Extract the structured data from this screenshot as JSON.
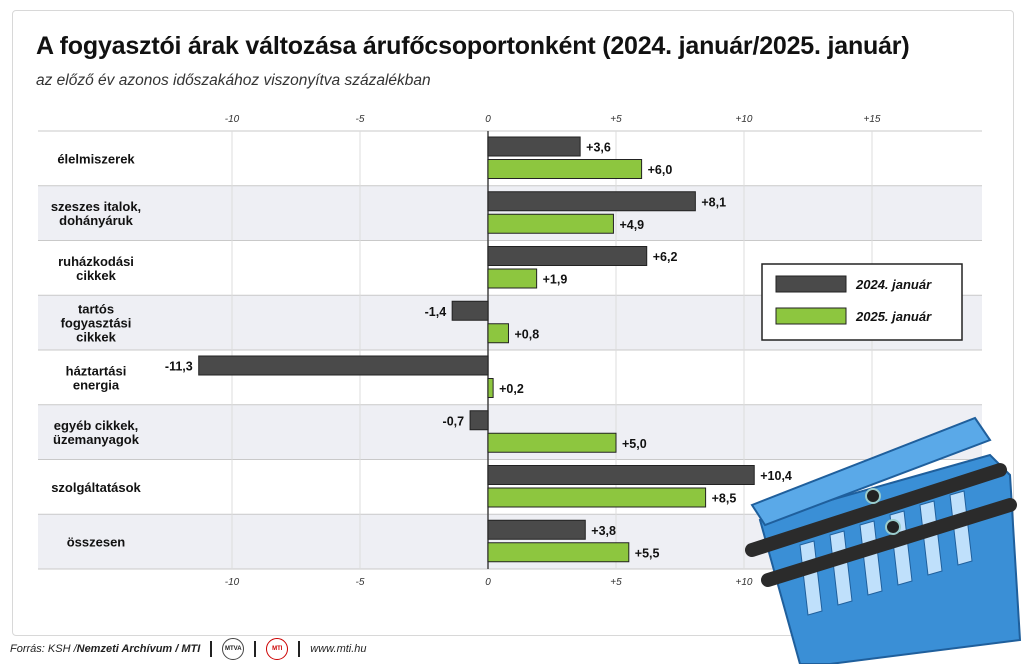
{
  "title": "A fogyasztói árak változása árufőcsoportonként (2024. január/2025. január)",
  "subtitle": "az előző év azonos időszakához viszonyítva százalékban",
  "chart_data": {
    "type": "bar",
    "orientation": "horizontal",
    "categories": [
      [
        "élelmiszerek"
      ],
      [
        "szeszes italok,",
        "dohányáruk"
      ],
      [
        "ruházkodási",
        "cikkek"
      ],
      [
        "tartós",
        "fogyasztási",
        "cikkek"
      ],
      [
        "háztartási",
        "energia"
      ],
      [
        "egyéb cikkek,",
        "üzemanyagok"
      ],
      [
        "szolgáltatások"
      ],
      [
        "összesen"
      ]
    ],
    "series": [
      {
        "name": "2024. január",
        "color": "#4a4a4a",
        "values": [
          3.6,
          8.1,
          6.2,
          -1.4,
          -11.3,
          -0.7,
          10.4,
          3.8
        ],
        "labels": [
          "+3,6",
          "+8,1",
          "+6,2",
          "-1,4",
          "-11,3",
          "-0,7",
          "+10,4",
          "+3,8"
        ]
      },
      {
        "name": "2025. január",
        "color": "#8dc63f",
        "values": [
          6.0,
          4.9,
          1.9,
          0.8,
          0.2,
          5.0,
          8.5,
          5.5
        ],
        "labels": [
          "+6,0",
          "+4,9",
          "+1,9",
          "+0,8",
          "+0,2",
          "+5,0",
          "+8,5",
          "+5,5"
        ]
      }
    ],
    "xlim": [
      -17.5,
      19.5
    ],
    "ticks": [
      -10,
      -5,
      0,
      5,
      10,
      15
    ],
    "tick_labels": [
      "-10",
      "-5",
      "0",
      "+5",
      "+10",
      "+15"
    ],
    "grid": true,
    "legend_position": "right"
  },
  "footer": {
    "source_label": "Forrás: KSH / ",
    "source_name": "Nemzeti Archívum / MTI",
    "logo1": "MTVA",
    "logo2": "MTI",
    "url": "www.mti.hu"
  },
  "basket_icon": "shopping-basket-icon"
}
